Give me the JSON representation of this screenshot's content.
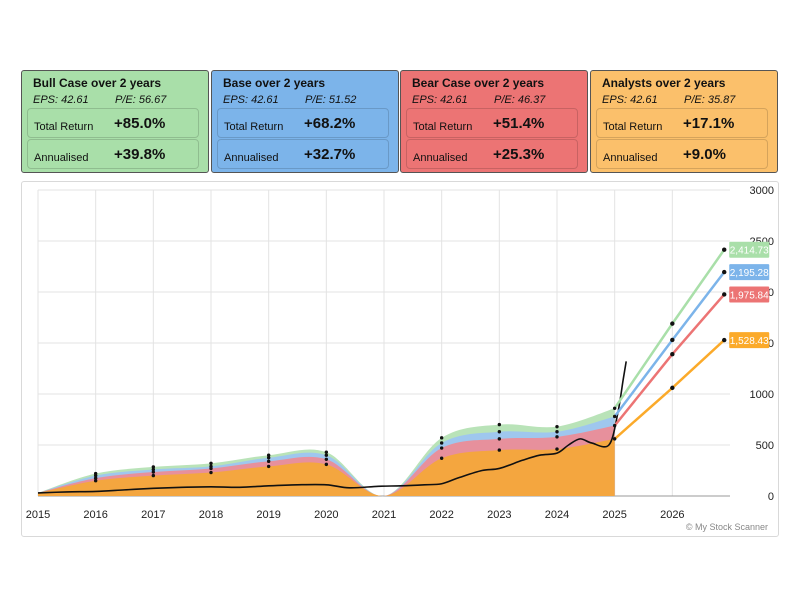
{
  "cards": [
    {
      "title": "Bull Case over 2 years",
      "eps": "EPS: 42.61",
      "pe": "P/E: 56.67",
      "total_return_label": "Total Return",
      "total_return": "+85.0%",
      "annualised_label": "Annualised",
      "annualised": "+39.8%",
      "color": "#a9dfa9"
    },
    {
      "title": "Base over 2 years",
      "eps": "EPS: 42.61",
      "pe": "P/E: 51.52",
      "total_return_label": "Total Return",
      "total_return": "+68.2%",
      "annualised_label": "Annualised",
      "annualised": "+32.7%",
      "color": "#7cb4ea"
    },
    {
      "title": "Bear Case over 2 years",
      "eps": "EPS: 42.61",
      "pe": "P/E: 46.37",
      "total_return_label": "Total Return",
      "total_return": "+51.4%",
      "annualised_label": "Annualised",
      "annualised": "+25.3%",
      "color": "#ec7474"
    },
    {
      "title": "Analysts over 2 years",
      "eps": "EPS: 42.61",
      "pe": "P/E: 35.87",
      "total_return_label": "Total Return",
      "total_return": "+17.1%",
      "annualised_label": "Annualised",
      "annualised": "+9.0%",
      "color": "#fbc06b"
    }
  ],
  "watermark": "© My Stock Scanner",
  "chart_data": {
    "type": "area",
    "x_tick_labels": [
      "2015",
      "2016",
      "2017",
      "2018",
      "2019",
      "2020",
      "2021",
      "2022",
      "2023",
      "2024",
      "2025",
      "2026"
    ],
    "y_tick_labels": [
      "0",
      "500",
      "1000",
      "1500",
      "2000",
      "2500",
      "3000"
    ],
    "ylim": [
      0,
      3000
    ],
    "grid": true,
    "fair_value_bands": {
      "x": [
        2015,
        2016,
        2017,
        2018,
        2019,
        2020,
        2021,
        2022,
        2023,
        2024,
        2025
      ],
      "analysts": [
        30,
        150,
        200,
        230,
        290,
        310,
        0,
        370,
        450,
        460,
        560
      ],
      "bear": [
        30,
        175,
        235,
        270,
        340,
        360,
        0,
        470,
        560,
        580,
        690
      ],
      "base": [
        30,
        200,
        260,
        290,
        375,
        400,
        0,
        520,
        630,
        630,
        780
      ],
      "bull": [
        30,
        220,
        285,
        320,
        400,
        430,
        0,
        570,
        700,
        680,
        860
      ]
    },
    "price": {
      "x": [
        2015,
        2015.5,
        2016,
        2016.5,
        2017,
        2017.5,
        2018,
        2018.5,
        2019,
        2019.5,
        2020,
        2020.4,
        2020.9,
        2021.3,
        2021.7,
        2022,
        2022.3,
        2022.7,
        2023,
        2023.4,
        2023.7,
        2024,
        2024.2,
        2024.4,
        2024.6,
        2024.9,
        2025.05,
        2025.15,
        2025.2
      ],
      "y": [
        30,
        40,
        45,
        60,
        75,
        85,
        90,
        85,
        100,
        110,
        110,
        80,
        95,
        100,
        110,
        120,
        180,
        250,
        270,
        350,
        400,
        420,
        500,
        560,
        520,
        500,
        800,
        1150,
        1320
      ]
    },
    "series": [
      {
        "name": "Bull Case",
        "color": "#a9dfa9",
        "x": [
          2025,
          2026,
          2026.9
        ],
        "values": [
          860,
          1690,
          2414.73
        ],
        "end_label": "2,414.73"
      },
      {
        "name": "Base",
        "color": "#7cb4ea",
        "x": [
          2025,
          2026,
          2026.9
        ],
        "values": [
          780,
          1530,
          2195.28
        ],
        "end_label": "2,195.28"
      },
      {
        "name": "Bear Case",
        "color": "#ec7474",
        "x": [
          2025,
          2026,
          2026.9
        ],
        "values": [
          690,
          1390,
          1975.84
        ],
        "end_label": "1,975.84"
      },
      {
        "name": "Analysts",
        "color": "#fbaa2a",
        "x": [
          2025,
          2026,
          2026.9
        ],
        "values": [
          560,
          1060,
          1528.43
        ],
        "end_label": "1,528.43"
      }
    ]
  }
}
